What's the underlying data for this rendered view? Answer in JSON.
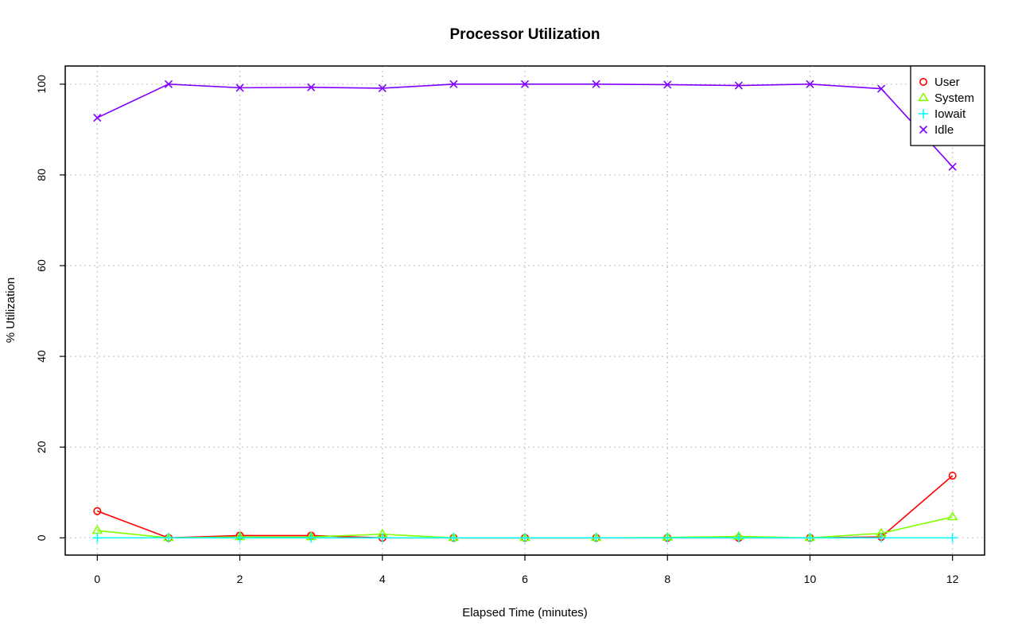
{
  "chart_data": {
    "type": "line",
    "title": "Processor Utilization",
    "xlabel": "Elapsed Time (minutes)",
    "ylabel": "% Utilization",
    "x": [
      0,
      1,
      2,
      3,
      4,
      5,
      6,
      7,
      8,
      9,
      10,
      11,
      12
    ],
    "xlim": [
      -0.45,
      12.45
    ],
    "ylim": [
      -3.8,
      104
    ],
    "xticks": [
      0,
      2,
      4,
      6,
      8,
      10,
      12
    ],
    "yticks": [
      0,
      20,
      40,
      60,
      80,
      100
    ],
    "grid": true,
    "legend_position": "top-right",
    "series": [
      {
        "name": "User",
        "color": "#ff0000",
        "marker": "circle",
        "values": [
          5.9,
          0.0,
          0.5,
          0.5,
          0.0,
          0.0,
          0.0,
          0.0,
          0.0,
          0.0,
          0.0,
          0.2,
          13.7
        ]
      },
      {
        "name": "System",
        "color": "#80ff00",
        "marker": "triangle",
        "values": [
          1.6,
          0.0,
          0.2,
          0.2,
          0.8,
          0.0,
          0.0,
          0.0,
          0.1,
          0.3,
          0.0,
          1.0,
          4.6
        ]
      },
      {
        "name": "Iowait",
        "color": "#00ffff",
        "marker": "plus",
        "values": [
          0.0,
          0.0,
          0.0,
          0.0,
          0.0,
          0.0,
          0.0,
          0.0,
          0.0,
          0.0,
          0.0,
          0.0,
          0.0
        ]
      },
      {
        "name": "Idle",
        "color": "#8000ff",
        "marker": "cross",
        "values": [
          92.6,
          100.0,
          99.2,
          99.3,
          99.1,
          100.0,
          100.0,
          100.0,
          99.9,
          99.7,
          100.0,
          99.0,
          81.8
        ]
      }
    ]
  }
}
